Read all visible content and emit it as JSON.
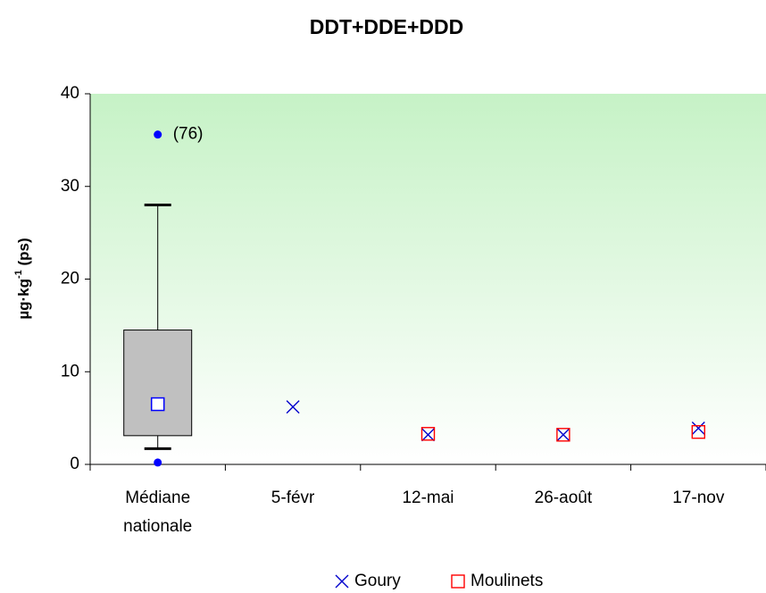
{
  "chart_data": {
    "type": "box",
    "title": "DDT+DDE+DDD",
    "ylabel": {
      "base": "µg·kg",
      "sup": "-1",
      "tail": " (ps)"
    },
    "categories": [
      "Médiane nationale",
      "5-févr",
      "12-mai",
      "26-août",
      "17-nov"
    ],
    "ylim": [
      0,
      40
    ],
    "yticks": [
      0,
      10,
      20,
      30,
      40
    ],
    "box": {
      "category": 0,
      "whislo": 1.7,
      "q1": 3.1,
      "median": 6.5,
      "q3": 14.5,
      "whishi": 28,
      "outliers": [
        35.6,
        0.2
      ],
      "color": "#c0c0c0",
      "median_color": "#0000ff"
    },
    "outlier_note": "(76)",
    "series": [
      {
        "name": "Goury",
        "color": "#0000cc",
        "marker": "x",
        "values": [
          null,
          6.2,
          3.2,
          3.2,
          3.9
        ]
      },
      {
        "name": "Moulinets",
        "color": "#ff0000",
        "marker": "square",
        "values": [
          null,
          null,
          3.3,
          3.2,
          3.5
        ]
      }
    ],
    "legend": "bottom"
  }
}
